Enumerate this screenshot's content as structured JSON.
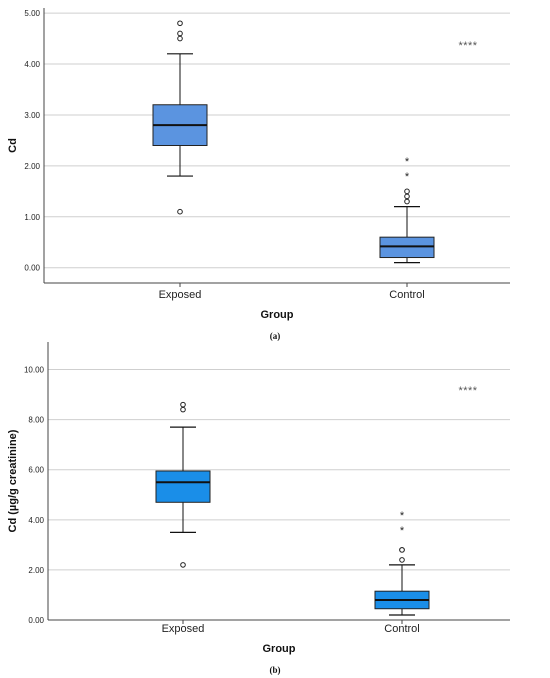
{
  "chart_data": [
    {
      "type": "boxplot",
      "panel_label": "(a)",
      "xlabel": "Group",
      "ylabel": "Cd",
      "ylim": [
        -0.3,
        5.1
      ],
      "yticks": [
        "0.00",
        "1.00",
        "2.00",
        "3.00",
        "4.00",
        "5.00"
      ],
      "ytick_values": [
        0,
        1,
        2,
        3,
        4,
        5
      ],
      "grid": true,
      "box_color": "#5b94e0",
      "significance": "****",
      "groups": [
        {
          "name": "Exposed",
          "whisker_low": 1.8,
          "q1": 2.4,
          "median": 2.8,
          "q3": 3.2,
          "whisker_high": 4.2,
          "outliers": [
            4.5,
            4.6,
            4.8,
            1.1
          ],
          "extremes": []
        },
        {
          "name": "Control",
          "whisker_low": 0.1,
          "q1": 0.2,
          "median": 0.42,
          "q3": 0.6,
          "whisker_high": 1.2,
          "outliers": [
            1.3,
            1.4,
            1.5
          ],
          "extremes": [
            1.8,
            2.1
          ]
        }
      ]
    },
    {
      "type": "boxplot",
      "panel_label": "(b)",
      "xlabel": "Group",
      "ylabel": "Cd (µg/g creatinine)",
      "ylim": [
        0,
        11.1
      ],
      "yticks": [
        "0.00",
        "2.00",
        "4.00",
        "6.00",
        "8.00",
        "10.00"
      ],
      "ytick_values": [
        0,
        2,
        4,
        6,
        8,
        10
      ],
      "grid": true,
      "box_color": "#1a8ee8",
      "significance": "****",
      "groups": [
        {
          "name": "Exposed",
          "whisker_low": 3.5,
          "q1": 4.7,
          "median": 5.5,
          "q3": 5.95,
          "whisker_high": 7.7,
          "outliers": [
            8.4,
            8.6,
            2.2
          ],
          "extremes": []
        },
        {
          "name": "Control",
          "whisker_low": 0.2,
          "q1": 0.45,
          "median": 0.8,
          "q3": 1.15,
          "whisker_high": 2.2,
          "outliers": [
            2.4,
            2.8,
            2.8
          ],
          "extremes": [
            3.6,
            4.2
          ]
        }
      ]
    }
  ]
}
